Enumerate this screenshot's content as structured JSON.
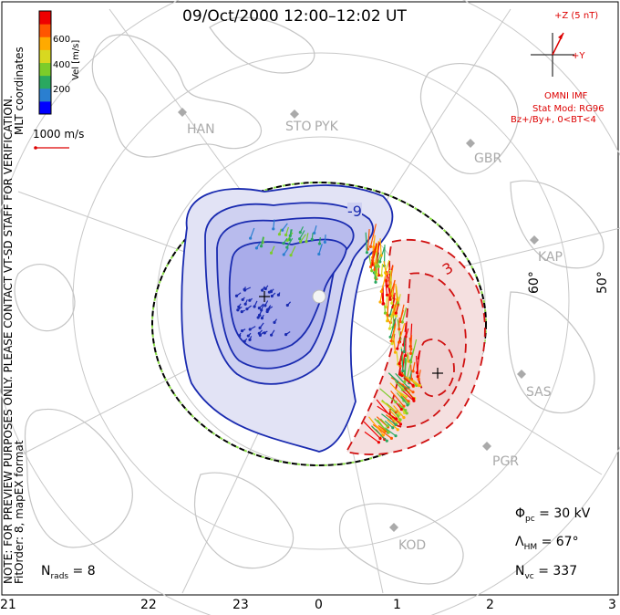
{
  "title": "09/Oct/2000 12:00–12:02 UT",
  "side_labels": {
    "note": "NOTE: FOR PREVIEW PURPOSES ONLY. PLEASE CONTACT VT-SD STAFF FOR VERIFICATION.",
    "fit": "FitOrder: 8, mapEX format",
    "coords": "MLT coordinates"
  },
  "colorbar": {
    "label": "Vel [m/s]",
    "ticks": [
      "600",
      "400",
      "200"
    ],
    "colors": [
      "#0000ff",
      "#2a7fd0",
      "#2aa860",
      "#7ccc2a",
      "#d8d820",
      "#ffaa00",
      "#ff5500",
      "#ee0000"
    ]
  },
  "scale_label": "1000 m/s",
  "imf": {
    "z_label": "+Z (5 nT)",
    "y_label": "+Y",
    "omni": "OMNI IMF",
    "stat_mod": "Stat Mod: RG96",
    "condition": "Bz+/By+, 0<BT<4"
  },
  "stations": [
    "HAN",
    "STO",
    "PYK",
    "GBR",
    "KAP",
    "SAS",
    "PGR",
    "KOD"
  ],
  "lat_labels": [
    "60°",
    "50°"
  ],
  "contour_labels": [
    "-9",
    "3"
  ],
  "stats": {
    "phi_symbol": "Φ",
    "phi_sub": "pc",
    "phi_value": " = 30 kV",
    "lambda_symbol": "Λ",
    "lambda_sub": "HM",
    "lambda_value": " = 67°",
    "nvc_symbol": "N",
    "nvc_sub": "vc",
    "nvc_value": " = 337",
    "nrads_symbol": "N",
    "nrads_sub": "rads",
    "nrads_value": " = 8"
  },
  "mlt_hours": [
    "21",
    "22",
    "23",
    "0",
    "1",
    "2",
    "3"
  ]
}
